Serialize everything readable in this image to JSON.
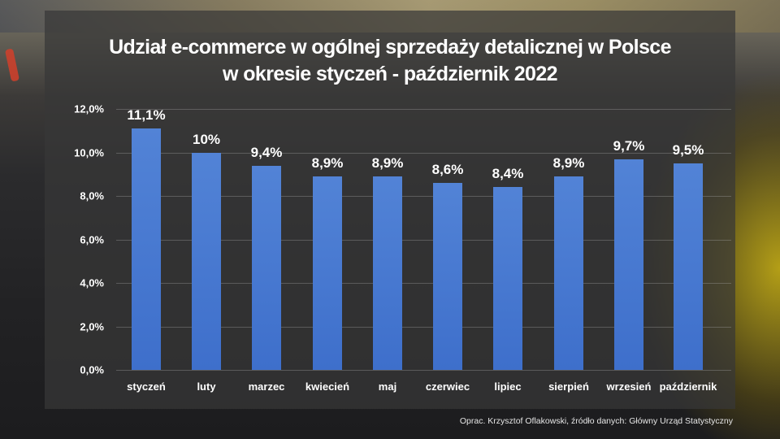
{
  "title_line1": "Udział e-commerce w ogólnej sprzedaży detalicznej w Polsce",
  "title_line2": "w okresie styczeń - październik 2022",
  "source": "Oprac. Krzysztof Oflakowski, źródło danych: Główny Urząd Statystyczny",
  "colors": {
    "bar": "#4a78d0",
    "panel": "#373737",
    "text": "#ffffff"
  },
  "y_ticks": [
    "0,0%",
    "2,0%",
    "4,0%",
    "6,0%",
    "8,0%",
    "10,0%",
    "12,0%"
  ],
  "value_labels": [
    "11,1%",
    "10%",
    "9,4%",
    "8,9%",
    "8,9%",
    "8,6%",
    "8,4%",
    "8,9%",
    "9,7%",
    "9,5%"
  ],
  "chart_data": {
    "type": "bar",
    "title": "Udział e-commerce w ogólnej sprzedaży detalicznej w Polsce w okresie styczeń - październik 2022",
    "categories": [
      "styczeń",
      "luty",
      "marzec",
      "kwiecień",
      "maj",
      "czerwiec",
      "lipiec",
      "sierpień",
      "wrzesień",
      "październik"
    ],
    "values": [
      11.1,
      10.0,
      9.4,
      8.9,
      8.9,
      8.6,
      8.4,
      8.9,
      9.7,
      9.5
    ],
    "data_labels": [
      "11,1%",
      "10%",
      "9,4%",
      "8,9%",
      "8,9%",
      "8,6%",
      "8,4%",
      "8,9%",
      "9,7%",
      "9,5%"
    ],
    "xlabel": "",
    "ylabel": "",
    "ylim": [
      0,
      12
    ],
    "y_ticks": [
      0,
      2,
      4,
      6,
      8,
      10,
      12
    ],
    "y_tick_format": "percent, comma decimal",
    "grid": true,
    "legend": "none",
    "source": "Oprac. Krzysztof Oflakowski, źródło danych: Główny Urząd Statystyczny"
  }
}
